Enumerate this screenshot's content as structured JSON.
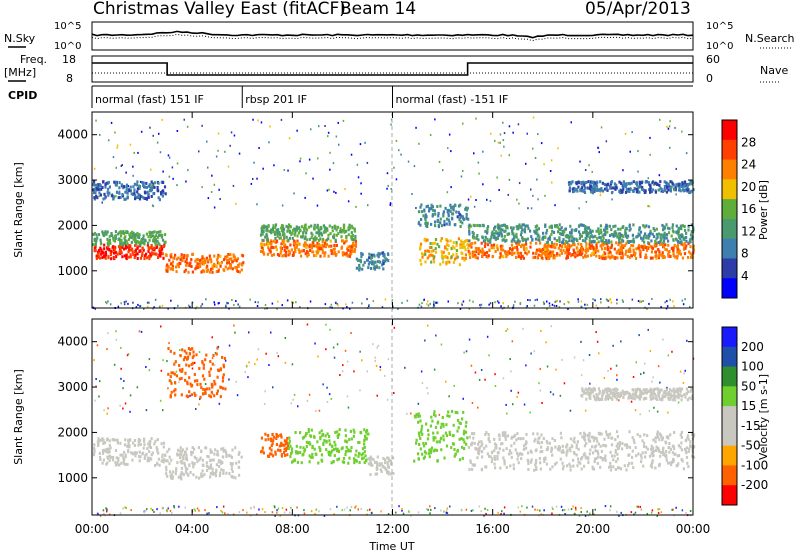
{
  "header": {
    "title": "Christmas Valley East (fitACF)",
    "beam": "Beam 14",
    "date": "05/Apr/2013"
  },
  "top_panels": {
    "nsky_label": "N.Sky",
    "nsky_ticks": [
      "10^5",
      "10^0"
    ],
    "nsearch_label": "N.Search",
    "freq_label_1": "Freq.",
    "freq_label_2": "[MHz]",
    "freq_ticks": [
      "18",
      "8"
    ],
    "nave_ticks": [
      "60",
      "0"
    ],
    "nave_label": "Nave",
    "cpid_label": "CPID",
    "cpid_segments": [
      {
        "label": "normal (fast) 151 IF",
        "start": 0,
        "end": 6
      },
      {
        "label": "rbsp 201 IF",
        "start": 6,
        "end": 12
      },
      {
        "label": "normal (fast) -151 IF",
        "start": 12,
        "end": 24
      }
    ]
  },
  "colors": {
    "power_scale": [
      "#0000ff",
      "#2c3ca8",
      "#3f7fb0",
      "#4a9a70",
      "#5fae3a",
      "#f0c000",
      "#ff8000",
      "#ff4000",
      "#ff0000"
    ],
    "velocity_scale": [
      "#1a1aff",
      "#1f4fa8",
      "#2f8f2f",
      "#6fcf2f",
      "#c8c8c0",
      "#c8c8c0",
      "#ffa500",
      "#ff6000",
      "#ff0000"
    ]
  },
  "chart_data": [
    {
      "type": "heatmap",
      "name": "power",
      "xlabel": "",
      "ylabel": "Slant Range [km]",
      "x_range_hours": [
        0,
        24
      ],
      "ylim": [
        180,
        4500
      ],
      "y_ticks": [
        1000,
        2000,
        3000,
        4000
      ],
      "colorbar_label": "Power [dB]",
      "colorbar_ticks": [
        4,
        8,
        12,
        16,
        20,
        24,
        28
      ],
      "bands": [
        {
          "t0": 0.0,
          "t1": 2.9,
          "r0": 1300,
          "r1": 1600,
          "level": 28
        },
        {
          "t0": 0.0,
          "t1": 2.9,
          "r0": 1600,
          "r1": 1900,
          "level": 14
        },
        {
          "t0": 0.0,
          "t1": 2.9,
          "r0": 2600,
          "r1": 3000,
          "level": 8
        },
        {
          "t0": 2.9,
          "t1": 6.0,
          "r0": 1000,
          "r1": 1400,
          "level": 24
        },
        {
          "t0": 6.7,
          "t1": 10.5,
          "r0": 1350,
          "r1": 1700,
          "level": 24
        },
        {
          "t0": 6.7,
          "t1": 10.5,
          "r0": 1700,
          "r1": 2050,
          "level": 14
        },
        {
          "t0": 10.5,
          "t1": 11.8,
          "r0": 1050,
          "r1": 1450,
          "level": 10
        },
        {
          "t0": 13.0,
          "t1": 15.0,
          "r0": 1150,
          "r1": 1750,
          "level": 20
        },
        {
          "t0": 13.0,
          "t1": 15.0,
          "r0": 2000,
          "r1": 2500,
          "level": 10
        },
        {
          "t0": 15.0,
          "t1": 24.0,
          "r0": 1300,
          "r1": 1650,
          "level": 24
        },
        {
          "t0": 15.0,
          "t1": 24.0,
          "r0": 1650,
          "r1": 2050,
          "level": 12
        },
        {
          "t0": 19.0,
          "t1": 24.0,
          "r0": 2750,
          "r1": 3000,
          "level": 8
        }
      ]
    },
    {
      "type": "heatmap",
      "name": "velocity",
      "xlabel": "Time UT",
      "ylabel": "Slant Range [km]",
      "x_range_hours": [
        0,
        24
      ],
      "x_ticks": [
        "00:00",
        "04:00",
        "08:00",
        "12:00",
        "16:00",
        "20:00",
        "00:00"
      ],
      "ylim": [
        180,
        4500
      ],
      "y_ticks": [
        1000,
        2000,
        3000,
        4000
      ],
      "colorbar_label": "Velocity [m s-1]",
      "colorbar_ticks": [
        200,
        100,
        50,
        15,
        -15,
        -50,
        -100,
        -200
      ],
      "bands": [
        {
          "t0": 0.0,
          "t1": 2.9,
          "r0": 1300,
          "r1": 1900,
          "level": 0
        },
        {
          "t0": 2.9,
          "t1": 6.0,
          "r0": 1000,
          "r1": 1700,
          "level": 0
        },
        {
          "t0": 3.0,
          "t1": 5.3,
          "r0": 2800,
          "r1": 3900,
          "level": -60
        },
        {
          "t0": 6.7,
          "t1": 7.8,
          "r0": 1500,
          "r1": 2000,
          "level": -60
        },
        {
          "t0": 7.8,
          "t1": 11.0,
          "r0": 1350,
          "r1": 2100,
          "level": 40
        },
        {
          "t0": 11.0,
          "t1": 12.0,
          "r0": 1100,
          "r1": 1500,
          "level": 0
        },
        {
          "t0": 12.8,
          "t1": 15.0,
          "r0": 1400,
          "r1": 2500,
          "level": 40
        },
        {
          "t0": 15.0,
          "t1": 24.0,
          "r0": 1200,
          "r1": 2050,
          "level": 0
        },
        {
          "t0": 19.5,
          "t1": 24.0,
          "r0": 2750,
          "r1": 3000,
          "level": 0
        }
      ]
    }
  ]
}
